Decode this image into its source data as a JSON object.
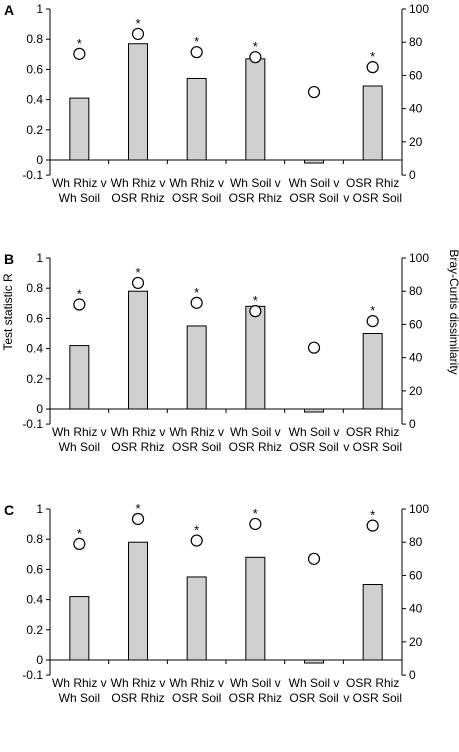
{
  "figure": {
    "y_axis_title": "Test statistic R",
    "y2_axis_title": "Bray-Curtis dissimilarity",
    "colors": {
      "bar_fill": "#d0d0d0",
      "bar_stroke": "#000000",
      "marker_fill": "#ffffff",
      "axis": "#000000"
    }
  },
  "chart_data": [
    {
      "panel": "A",
      "type": "bar",
      "categories": [
        "Wh Rhiz v\nWh Soil",
        "Wh Rhiz v\nOSR Rhiz",
        "Wh Rhiz v\nOSR Soil",
        "Wh Soil v\nOSR Rhiz",
        "Wh Soil v\nOSR Soil",
        "OSR Rhiz\nv OSR Soil"
      ],
      "series": [
        {
          "axis": "left",
          "kind": "bar",
          "values": [
            0.41,
            0.77,
            0.54,
            0.67,
            -0.02,
            0.49
          ]
        },
        {
          "axis": "right",
          "kind": "scatter",
          "marker": "open-circle",
          "values": [
            73,
            85,
            74,
            71,
            50,
            65
          ]
        }
      ],
      "significance": [
        "*",
        "*",
        "*",
        "*",
        "",
        "*"
      ],
      "ylim": [
        -0.1,
        1.0
      ],
      "yticks": [
        "-0.1",
        "0",
        "0.2",
        "0.4",
        "0.6",
        "0.8",
        "1"
      ],
      "y2lim": [
        0,
        100
      ],
      "y2ticks": [
        "0",
        "20",
        "40",
        "60",
        "80",
        "100"
      ]
    },
    {
      "panel": "B",
      "type": "bar",
      "categories": [
        "Wh Rhiz v\nWh Soil",
        "Wh Rhiz v\nOSR Rhiz",
        "Wh Rhiz v\nOSR Soil",
        "Wh Soil v\nOSR Rhiz",
        "Wh Soil v\nOSR Soil",
        "OSR Rhiz\nv OSR Soil"
      ],
      "series": [
        {
          "axis": "left",
          "kind": "bar",
          "values": [
            0.42,
            0.78,
            0.55,
            0.68,
            -0.02,
            0.5
          ]
        },
        {
          "axis": "right",
          "kind": "scatter",
          "marker": "open-circle",
          "values": [
            72,
            85,
            73,
            68,
            46,
            62
          ]
        }
      ],
      "significance": [
        "*",
        "*",
        "*",
        "*",
        "",
        "*"
      ],
      "ylim": [
        -0.1,
        1.0
      ],
      "yticks": [
        "-0.1",
        "0",
        "0.2",
        "0.4",
        "0.6",
        "0.8",
        "1"
      ],
      "y2lim": [
        0,
        100
      ],
      "y2ticks": [
        "0",
        "20",
        "40",
        "60",
        "80",
        "100"
      ]
    },
    {
      "panel": "C",
      "type": "bar",
      "categories": [
        "Wh Rhiz v\nWh Soil",
        "Wh Rhiz v\nOSR Rhiz",
        "Wh Rhiz v\nOSR Soil",
        "Wh Soil v\nOSR Rhiz",
        "Wh Soil v\nOSR Soil",
        "OSR Rhiz\nv OSR Soil"
      ],
      "series": [
        {
          "axis": "left",
          "kind": "bar",
          "values": [
            0.42,
            0.78,
            0.55,
            0.68,
            -0.02,
            0.5
          ]
        },
        {
          "axis": "right",
          "kind": "scatter",
          "marker": "open-circle",
          "values": [
            79,
            94,
            81,
            91,
            70,
            90
          ]
        }
      ],
      "significance": [
        "*",
        "*",
        "*",
        "*",
        "",
        "*"
      ],
      "ylim": [
        -0.1,
        1.0
      ],
      "yticks": [
        "-0.1",
        "0",
        "0.2",
        "0.4",
        "0.6",
        "0.8",
        "1"
      ],
      "y2lim": [
        0,
        100
      ],
      "y2ticks": [
        "0",
        "20",
        "40",
        "60",
        "80",
        "100"
      ]
    }
  ]
}
